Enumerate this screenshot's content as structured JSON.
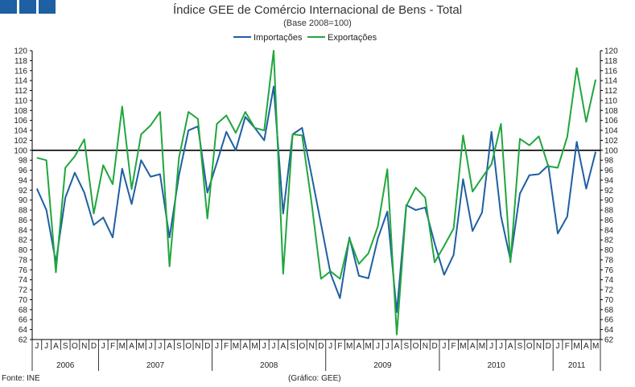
{
  "header": {
    "title": "Índice GEE de Comércio Internacional de Bens - Total",
    "subtitle": "(Base 2008=100)"
  },
  "footer": {
    "source": "Fonte: INE",
    "credit": "(Gráfico: GEE)"
  },
  "chart_data": {
    "type": "line",
    "title": "Índice GEE de Comércio Internacional de Bens - Total",
    "subtitle": "(Base 2008=100)",
    "legend_position": "top-center",
    "ylim": [
      62,
      120
    ],
    "ytick_step": 2,
    "reference_line": 100,
    "grid": false,
    "colors": {
      "Importações": "#1f5fa3",
      "Exportações": "#21a63d",
      "reference": "#000000"
    },
    "x_month_labels": [
      "J",
      "J",
      "A",
      "S",
      "O",
      "N",
      "D",
      "J",
      "F",
      "M",
      "A",
      "M",
      "J",
      "J",
      "A",
      "S",
      "O",
      "N",
      "D",
      "J",
      "F",
      "M",
      "A",
      "M",
      "J",
      "J",
      "A",
      "S",
      "O",
      "N",
      "D",
      "J",
      "F",
      "M",
      "A",
      "M",
      "J",
      "J",
      "A",
      "S",
      "O",
      "N",
      "D",
      "J",
      "F",
      "M",
      "A",
      "M",
      "J",
      "J",
      "A",
      "S",
      "O",
      "N",
      "D",
      "J",
      "F",
      "M",
      "A",
      "M"
    ],
    "year_groups": [
      {
        "label": "2006",
        "count": 7
      },
      {
        "label": "2007",
        "count": 12
      },
      {
        "label": "2008",
        "count": 12
      },
      {
        "label": "2009",
        "count": 12
      },
      {
        "label": "2010",
        "count": 12
      },
      {
        "label": "2011",
        "count": 5
      }
    ],
    "series": [
      {
        "name": "Importações",
        "values": [
          92.3,
          88,
          77.5,
          90.5,
          95.5,
          91.5,
          85,
          86.5,
          82.5,
          96.3,
          89.2,
          98,
          94.7,
          95.2,
          82.5,
          95,
          104,
          104.8,
          91.5,
          97.5,
          103.7,
          100,
          106.7,
          104.5,
          102,
          112.8,
          87.3,
          103.2,
          104.5,
          95,
          85.2,
          75.3,
          70.3,
          82.5,
          74.8,
          74.3,
          82.3,
          87.7,
          67.5,
          89,
          88,
          88.5,
          81.3,
          75,
          79,
          94.2,
          83.8,
          87.5,
          103.7,
          86.8,
          78,
          91.3,
          95,
          95.2,
          97,
          83.3,
          86.7,
          101.7,
          92.3,
          99.7
        ]
      },
      {
        "name": "Exportações",
        "values": [
          98.5,
          98,
          75.5,
          96.5,
          98.8,
          102.2,
          87.3,
          97,
          93.2,
          108.8,
          92.2,
          103.2,
          105,
          107.7,
          76.7,
          98.5,
          107.7,
          106.3,
          86.3,
          105.3,
          107,
          103.5,
          107.7,
          104.5,
          104,
          120,
          75.2,
          103.2,
          103,
          89.5,
          74.2,
          75.7,
          74.2,
          82.3,
          77.2,
          79.3,
          84.7,
          96.2,
          63,
          88.8,
          92.5,
          90.5,
          77.5,
          80.8,
          84.3,
          103,
          91.7,
          94.5,
          97.2,
          105.3,
          77.5,
          102.3,
          101,
          102.8,
          96.8,
          96.5,
          102.7,
          116.5,
          105.7,
          114.2
        ]
      }
    ]
  }
}
